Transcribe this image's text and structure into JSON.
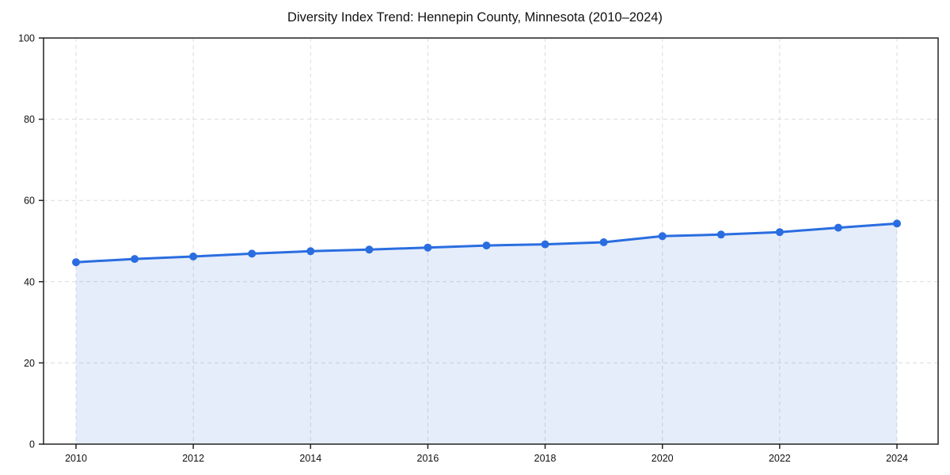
{
  "page": {
    "background_color": "#ffffff"
  },
  "chart_data": {
    "type": "area",
    "title": "Diversity Index Trend: Hennepin County, Minnesota (2010–2024)",
    "x": [
      2010,
      2011,
      2012,
      2013,
      2014,
      2015,
      2016,
      2017,
      2018,
      2019,
      2020,
      2021,
      2022,
      2023,
      2024
    ],
    "series": [
      {
        "name": "Diversity Index",
        "values": [
          44.8,
          45.6,
          46.2,
          46.9,
          47.5,
          47.9,
          48.4,
          48.9,
          49.2,
          49.7,
          51.2,
          51.6,
          52.2,
          53.3,
          54.3
        ]
      }
    ],
    "xlabel": "",
    "ylabel": "",
    "ylim": [
      0,
      100
    ],
    "yticks": [
      0,
      20,
      40,
      60,
      80,
      100
    ],
    "xticks": [
      2010,
      2012,
      2014,
      2016,
      2018,
      2020,
      2022,
      2024
    ],
    "grid": "dashed",
    "legend_position": "none",
    "line_color": "#2a6de0",
    "fill_color": "rgba(42,109,224,0.12)",
    "marker": "circle"
  }
}
